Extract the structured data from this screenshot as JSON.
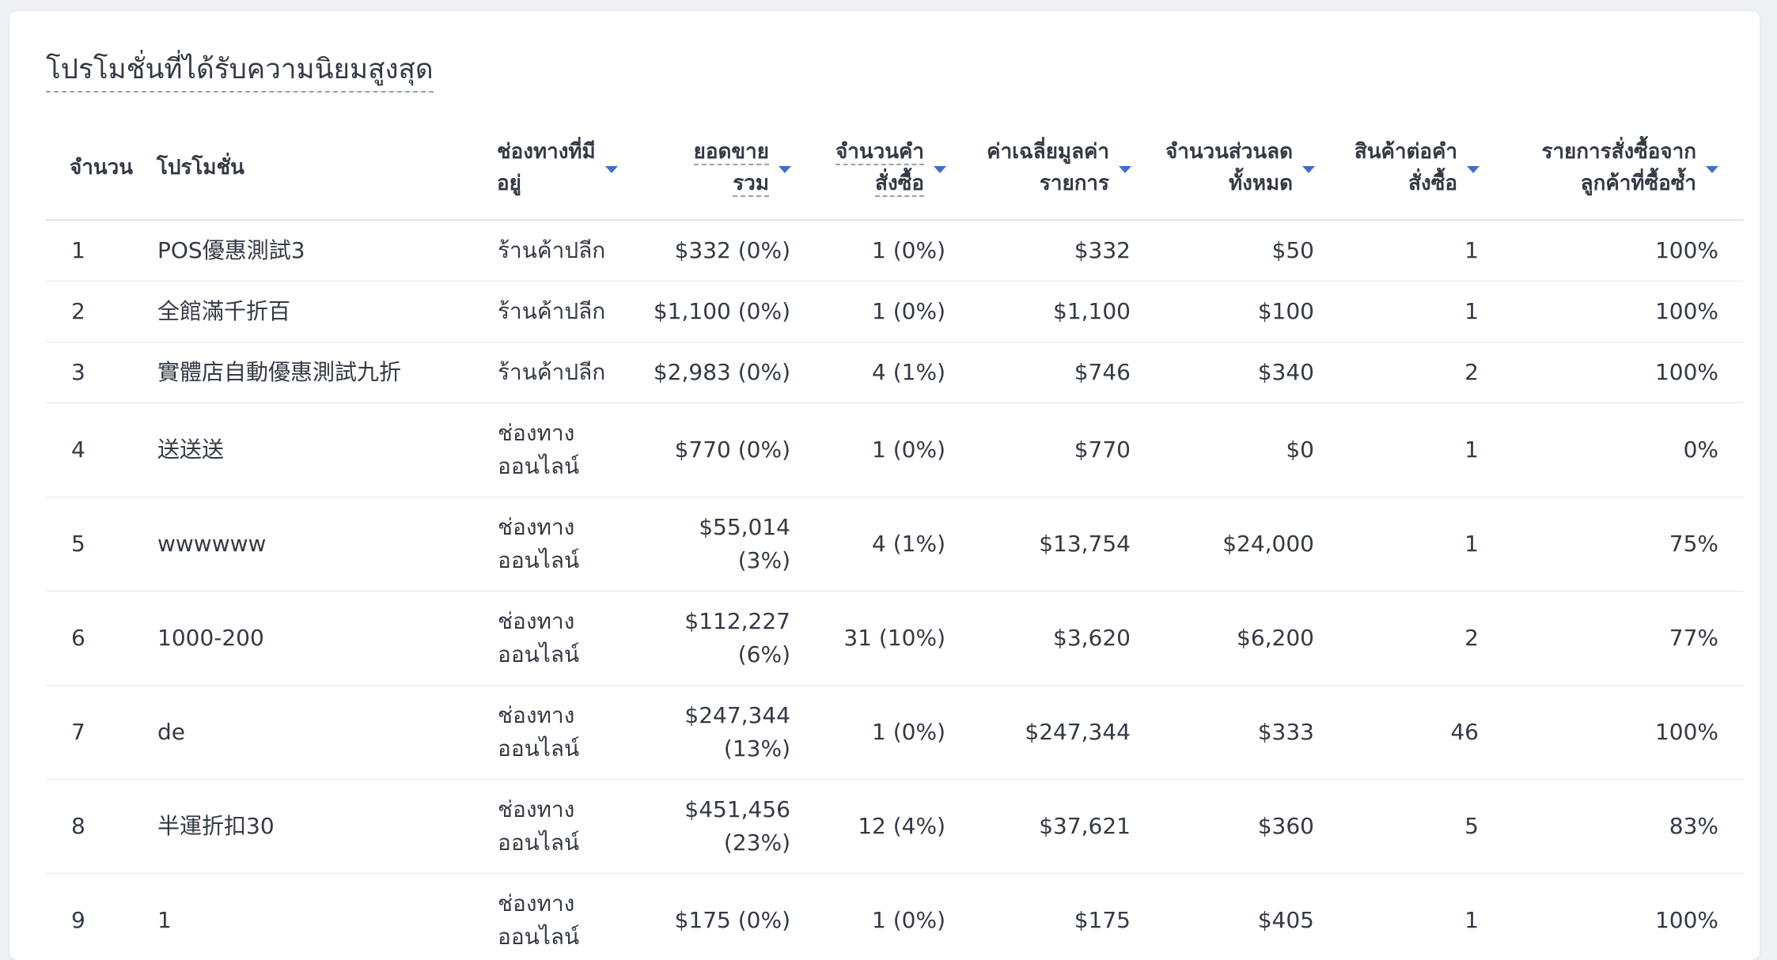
{
  "title": "โปรโมชั่นที่ได้รับความนิยมสูงสุด",
  "columns": {
    "rank": "จำนวน",
    "promotion": "โปรโมชั่น",
    "channel_l1": "ช่องทางที่มี",
    "channel_l2": "อยู่",
    "sales_l1": "ยอดขาย",
    "sales_l2": "รวม",
    "orders_l1": "จำนวนคำ",
    "orders_l2": "สั่งซื้อ",
    "avg_l1": "ค่าเฉลี่ยมูลค่า",
    "avg_l2": "รายการ",
    "discount_l1": "จำนวนส่วนลด",
    "discount_l2": "ทั้งหมด",
    "items_l1": "สินค้าต่อคำ",
    "items_l2": "สั่งซื้อ",
    "repeat_l1": "รายการสั่งซื้อจาก",
    "repeat_l2": "ลูกค้าที่ซื้อซ้ำ"
  },
  "rows": [
    {
      "rank": "1",
      "promotion": "POS優惠測試3",
      "channel_l1": "ร้านค้าปลีก",
      "channel_l2": "",
      "sales_l1": "$332 (0%)",
      "sales_l2": "",
      "orders": "1 (0%)",
      "avg": "$332",
      "discount": "$50",
      "items": "1",
      "repeat": "100%"
    },
    {
      "rank": "2",
      "promotion": "全館滿千折百",
      "channel_l1": "ร้านค้าปลีก",
      "channel_l2": "",
      "sales_l1": "$1,100 (0%)",
      "sales_l2": "",
      "orders": "1 (0%)",
      "avg": "$1,100",
      "discount": "$100",
      "items": "1",
      "repeat": "100%"
    },
    {
      "rank": "3",
      "promotion": "實體店自動優惠測試九折",
      "channel_l1": "ร้านค้าปลีก",
      "channel_l2": "",
      "sales_l1": "$2,983 (0%)",
      "sales_l2": "",
      "orders": "4 (1%)",
      "avg": "$746",
      "discount": "$340",
      "items": "2",
      "repeat": "100%"
    },
    {
      "rank": "4",
      "promotion": "送送送",
      "channel_l1": "ช่องทาง",
      "channel_l2": "ออนไลน์",
      "sales_l1": "$770 (0%)",
      "sales_l2": "",
      "orders": "1 (0%)",
      "avg": "$770",
      "discount": "$0",
      "items": "1",
      "repeat": "0%"
    },
    {
      "rank": "5",
      "promotion": "wwwwww",
      "channel_l1": "ช่องทาง",
      "channel_l2": "ออนไลน์",
      "sales_l1": "$55,014",
      "sales_l2": "(3%)",
      "orders": "4 (1%)",
      "avg": "$13,754",
      "discount": "$24,000",
      "items": "1",
      "repeat": "75%"
    },
    {
      "rank": "6",
      "promotion": "1000-200",
      "channel_l1": "ช่องทาง",
      "channel_l2": "ออนไลน์",
      "sales_l1": "$112,227",
      "sales_l2": "(6%)",
      "orders": "31 (10%)",
      "avg": "$3,620",
      "discount": "$6,200",
      "items": "2",
      "repeat": "77%"
    },
    {
      "rank": "7",
      "promotion": "de",
      "channel_l1": "ช่องทาง",
      "channel_l2": "ออนไลน์",
      "sales_l1": "$247,344",
      "sales_l2": "(13%)",
      "orders": "1 (0%)",
      "avg": "$247,344",
      "discount": "$333",
      "items": "46",
      "repeat": "100%"
    },
    {
      "rank": "8",
      "promotion": "半運折扣30",
      "channel_l1": "ช่องทาง",
      "channel_l2": "ออนไลน์",
      "sales_l1": "$451,456",
      "sales_l2": "(23%)",
      "orders": "12 (4%)",
      "avg": "$37,621",
      "discount": "$360",
      "items": "5",
      "repeat": "83%"
    },
    {
      "rank": "9",
      "promotion": "1",
      "channel_l1": "ช่องทาง",
      "channel_l2": "ออนไลน์",
      "sales_l1": "$175 (0%)",
      "sales_l2": "",
      "orders": "1 (0%)",
      "avg": "$175",
      "discount": "$405",
      "items": "1",
      "repeat": "100%"
    }
  ],
  "icons": {
    "sort": "sort-desc-icon"
  },
  "colors": {
    "sort_arrow": "#3a6fd6",
    "text": "#333a45",
    "background": "#eef0f3"
  }
}
